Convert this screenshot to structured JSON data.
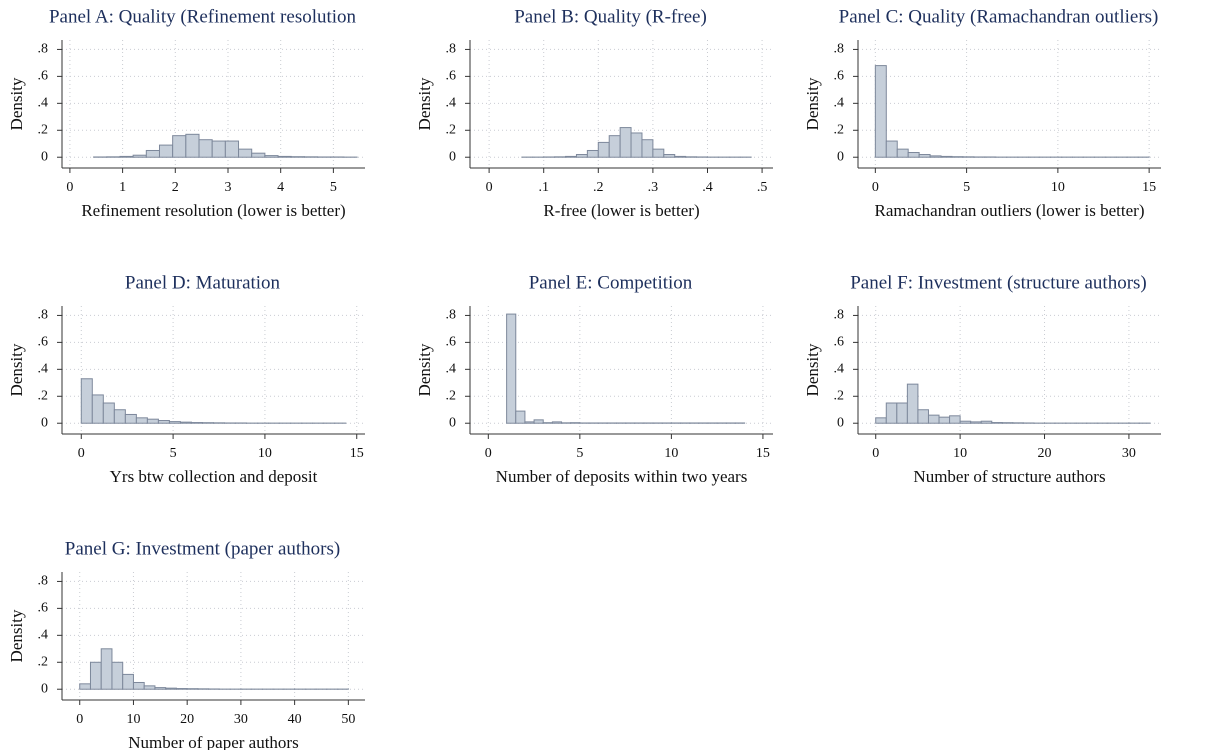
{
  "chart_data": [
    {
      "type": "histogram",
      "title": "Panel A: Quality (Refinement resolution",
      "xlabel": "Refinement resolution (lower is better)",
      "ylabel": "Density",
      "bins": [
        0.45,
        0.7,
        0.95,
        1.2,
        1.45,
        1.7,
        1.95,
        2.2,
        2.45,
        2.7,
        2.95,
        3.2,
        3.45,
        3.7,
        3.95,
        4.2,
        4.45,
        4.7,
        4.95,
        5.2,
        5.45
      ],
      "counts": [
        0.002,
        0.003,
        0.006,
        0.015,
        0.05,
        0.09,
        0.16,
        0.17,
        0.13,
        0.12,
        0.12,
        0.06,
        0.03,
        0.012,
        0.006,
        0.004,
        0.003,
        0.002,
        0.002,
        0.001
      ],
      "xlim": [
        -0.15,
        5.6
      ],
      "xticks": [
        0,
        1,
        2,
        3,
        4,
        5
      ],
      "ylim": [
        -0.08,
        0.87
      ],
      "yticks": [
        0,
        {
          "value": 0.2,
          "label": ".2"
        },
        {
          "value": 0.4,
          "label": ".4"
        },
        {
          "value": 0.6,
          "label": ".6"
        },
        {
          "value": 0.8,
          "label": ".8"
        }
      ],
      "grid": true,
      "color": "#c6cfda",
      "edgecolor": "#7d889b"
    },
    {
      "type": "histogram",
      "title": "Panel B: Quality (R-free)",
      "xlabel": "R-free (lower is better)",
      "ylabel": "Density",
      "bins": [
        0.06,
        0.08,
        0.1,
        0.12,
        0.14,
        0.16,
        0.18,
        0.2,
        0.22,
        0.24,
        0.26,
        0.28,
        0.3,
        0.32,
        0.34,
        0.36,
        0.38,
        0.4,
        0.42,
        0.44,
        0.46,
        0.48
      ],
      "counts": [
        0.001,
        0.001,
        0.002,
        0.003,
        0.006,
        0.02,
        0.05,
        0.11,
        0.16,
        0.22,
        0.18,
        0.13,
        0.06,
        0.02,
        0.006,
        0.003,
        0.002,
        0.001,
        0.001,
        0.001,
        0.001
      ],
      "xlim": [
        -0.035,
        0.52
      ],
      "xticks": [
        0,
        {
          "value": 0.1,
          "label": ".1"
        },
        {
          "value": 0.2,
          "label": ".2"
        },
        {
          "value": 0.3,
          "label": ".3"
        },
        {
          "value": 0.4,
          "label": ".4"
        },
        {
          "value": 0.5,
          "label": ".5"
        }
      ],
      "ylim": [
        -0.08,
        0.87
      ],
      "yticks": [
        0,
        {
          "value": 0.2,
          "label": ".2"
        },
        {
          "value": 0.4,
          "label": ".4"
        },
        {
          "value": 0.6,
          "label": ".6"
        },
        {
          "value": 0.8,
          "label": ".8"
        }
      ],
      "grid": true,
      "color": "#c6cfda",
      "edgecolor": "#7d889b"
    },
    {
      "type": "histogram",
      "title": "Panel C: Quality (Ramachandran outliers)",
      "xlabel": "Ramachandran outliers (lower is better)",
      "ylabel": "Density",
      "bins": [
        0,
        0.6,
        1.2,
        1.8,
        2.4,
        3,
        3.6,
        4.2,
        4.8,
        5.4,
        6,
        6.6,
        7.2,
        7.8,
        8.4,
        9,
        9.6,
        10.2,
        10.8,
        11.4,
        12,
        12.6,
        13.2,
        13.8,
        14.4,
        15
      ],
      "counts": [
        0.68,
        0.12,
        0.06,
        0.035,
        0.02,
        0.01,
        0.006,
        0.004,
        0.003,
        0.002,
        0.002,
        0.001,
        0.001,
        0.001,
        0.001,
        0.001,
        0.001,
        0.001,
        0.001,
        0.001,
        0.001,
        0.001,
        0.001,
        0.001,
        0.001
      ],
      "xlim": [
        -0.95,
        15.65
      ],
      "xticks": [
        0,
        5,
        10,
        15
      ],
      "ylim": [
        -0.08,
        0.87
      ],
      "yticks": [
        0,
        {
          "value": 0.2,
          "label": ".2"
        },
        {
          "value": 0.4,
          "label": ".4"
        },
        {
          "value": 0.6,
          "label": ".6"
        },
        {
          "value": 0.8,
          "label": ".8"
        }
      ],
      "grid": true,
      "color": "#c6cfda",
      "edgecolor": "#7d889b"
    },
    {
      "type": "histogram",
      "title": "Panel D: Maturation",
      "xlabel": "Yrs btw collection and deposit",
      "ylabel": "Density",
      "bins": [
        0,
        0.6,
        1.2,
        1.8,
        2.4,
        3,
        3.6,
        4.2,
        4.8,
        5.4,
        6,
        6.6,
        7.2,
        7.8,
        8.4,
        9,
        9.6,
        10.2,
        10.8,
        11.4,
        12,
        12.6,
        13.2,
        13.8,
        14.4
      ],
      "counts": [
        0.33,
        0.21,
        0.15,
        0.1,
        0.065,
        0.04,
        0.03,
        0.02,
        0.012,
        0.008,
        0.005,
        0.004,
        0.003,
        0.002,
        0.002,
        0.001,
        0.001,
        0.001,
        0.001,
        0.001,
        0.001,
        0.001,
        0.001,
        0.001
      ],
      "xlim": [
        -1.05,
        15.45
      ],
      "xticks": [
        0,
        5,
        10,
        15
      ],
      "ylim": [
        -0.08,
        0.87
      ],
      "yticks": [
        0,
        {
          "value": 0.2,
          "label": ".2"
        },
        {
          "value": 0.4,
          "label": ".4"
        },
        {
          "value": 0.6,
          "label": ".6"
        },
        {
          "value": 0.8,
          "label": ".8"
        }
      ],
      "grid": true,
      "color": "#c6cfda",
      "edgecolor": "#7d889b"
    },
    {
      "type": "histogram",
      "title": "Panel E: Competition",
      "xlabel": "Number of deposits within two years",
      "ylabel": "Density",
      "bins": [
        1,
        1.5,
        2,
        2.5,
        3,
        3.5,
        4,
        4.5,
        5,
        5.5,
        6,
        6.5,
        7,
        7.5,
        8,
        8.5,
        9,
        9.5,
        10,
        10.5,
        11,
        11.5,
        12,
        12.5,
        13,
        13.5,
        14
      ],
      "counts": [
        0.81,
        0.09,
        0.01,
        0.025,
        0.004,
        0.01,
        0.003,
        0.004,
        0.002,
        0.002,
        0.002,
        0.002,
        0.002,
        0.002,
        0.002,
        0.002,
        0.002,
        0.002,
        0.002,
        0.002,
        0.002,
        0.002,
        0.002,
        0.002,
        0.002,
        0.002
      ],
      "xlim": [
        -1,
        15.55
      ],
      "xticks": [
        0,
        5,
        10,
        15
      ],
      "ylim": [
        -0.08,
        0.87
      ],
      "yticks": [
        0,
        {
          "value": 0.2,
          "label": ".2"
        },
        {
          "value": 0.4,
          "label": ".4"
        },
        {
          "value": 0.6,
          "label": ".6"
        },
        {
          "value": 0.8,
          "label": ".8"
        }
      ],
      "grid": true,
      "color": "#c6cfda",
      "edgecolor": "#7d889b"
    },
    {
      "type": "histogram",
      "title": "Panel F: Investment (structure authors)",
      "xlabel": "Number of structure authors",
      "ylabel": "Density",
      "bins": [
        0,
        1.25,
        2.5,
        3.75,
        5,
        6.25,
        7.5,
        8.75,
        10,
        11.25,
        12.5,
        13.75,
        15,
        16.25,
        17.5,
        18.75,
        20,
        21.25,
        22.5,
        23.75,
        25,
        26.25,
        27.5,
        28.75,
        30,
        31.25,
        32.5
      ],
      "counts": [
        0.04,
        0.15,
        0.15,
        0.29,
        0.1,
        0.06,
        0.045,
        0.055,
        0.015,
        0.01,
        0.015,
        0.005,
        0.004,
        0.003,
        0.002,
        0.001,
        0.001,
        0.001,
        0.001,
        0.001,
        0.001,
        0.001,
        0.001,
        0.001,
        0.001,
        0.001
      ],
      "xlim": [
        -2.1,
        33.8
      ],
      "xticks": [
        0,
        10,
        20,
        30
      ],
      "ylim": [
        -0.08,
        0.87
      ],
      "yticks": [
        0,
        {
          "value": 0.2,
          "label": ".2"
        },
        {
          "value": 0.4,
          "label": ".4"
        },
        {
          "value": 0.6,
          "label": ".6"
        },
        {
          "value": 0.8,
          "label": ".8"
        }
      ],
      "grid": true,
      "color": "#c6cfda",
      "edgecolor": "#7d889b"
    },
    {
      "type": "histogram",
      "title": "Panel G: Investment (paper authors)",
      "xlabel": "Number of paper authors",
      "ylabel": "Density",
      "bins": [
        0,
        2,
        4,
        6,
        8,
        10,
        12,
        14,
        16,
        18,
        20,
        22,
        24,
        26,
        28,
        30,
        32,
        34,
        36,
        38,
        40,
        42,
        44,
        46,
        48,
        50
      ],
      "counts": [
        0.04,
        0.2,
        0.3,
        0.2,
        0.11,
        0.05,
        0.025,
        0.012,
        0.008,
        0.005,
        0.004,
        0.003,
        0.002,
        0.001,
        0.001,
        0.001,
        0.001,
        0.001,
        0.001,
        0.001,
        0.001,
        0.001,
        0.001,
        0.001,
        0.001
      ],
      "xlim": [
        -3.3,
        53.1
      ],
      "xticks": [
        0,
        10,
        20,
        30,
        40,
        50
      ],
      "ylim": [
        -0.08,
        0.87
      ],
      "yticks": [
        0,
        {
          "value": 0.2,
          "label": ".2"
        },
        {
          "value": 0.4,
          "label": ".4"
        },
        {
          "value": 0.6,
          "label": ".6"
        },
        {
          "value": 0.8,
          "label": ".8"
        }
      ],
      "grid": true,
      "color": "#c6cfda",
      "edgecolor": "#7d889b"
    }
  ]
}
